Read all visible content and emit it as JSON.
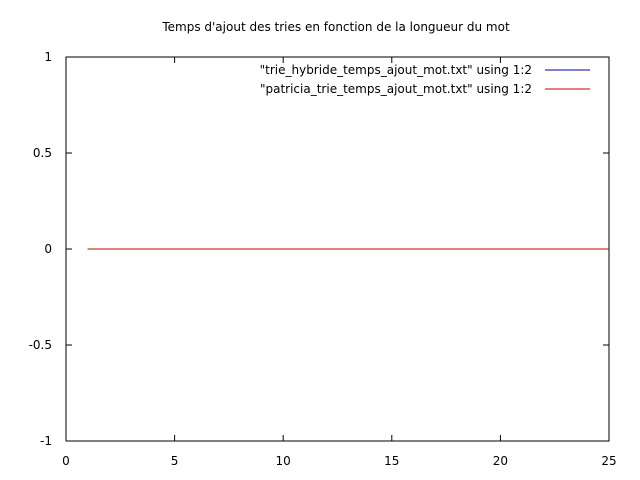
{
  "chart_data": {
    "type": "line",
    "title": "Temps d'ajout des tries en fonction de la longueur du mot",
    "xlabel": "",
    "ylabel": "",
    "xlim": [
      0,
      25
    ],
    "ylim": [
      -1,
      1
    ],
    "xticks": [
      0,
      5,
      10,
      15,
      20,
      25
    ],
    "yticks": [
      -1,
      -0.5,
      0,
      0.5,
      1
    ],
    "xtick_labels": [
      "0",
      "5",
      "10",
      "15",
      "20",
      "25"
    ],
    "ytick_labels": [
      "-1",
      "-0.5",
      "0",
      "0.5",
      "1"
    ],
    "grid": false,
    "legend_position": "top-right",
    "series": [
      {
        "name": "\"trie_hybride_temps_ajout_mot.txt\" using 1:2",
        "color": "#0000a0",
        "x": [
          1,
          2,
          3,
          4,
          5,
          6,
          7,
          8,
          9,
          10,
          11,
          12,
          13,
          14,
          15,
          16,
          17,
          18,
          19,
          20,
          21,
          22,
          23,
          24,
          25
        ],
        "y": [
          0,
          0,
          0,
          0,
          0,
          0,
          0,
          0,
          0,
          0,
          0,
          0,
          0,
          0,
          0,
          0,
          0,
          0,
          0,
          0,
          0,
          0,
          0,
          0,
          0
        ]
      },
      {
        "name": "\"patricia_trie_temps_ajout_mot.txt\" using 1:2",
        "color": "#c00000",
        "x": [
          1,
          2,
          3,
          4,
          5,
          6,
          7,
          8,
          9,
          10,
          11,
          12,
          13,
          14,
          15,
          16,
          17,
          18,
          19,
          20,
          21,
          22,
          23,
          24,
          25
        ],
        "y": [
          0,
          0,
          0,
          0,
          0,
          0,
          0,
          0,
          0,
          0,
          0,
          0,
          0,
          0,
          0,
          0,
          0,
          0,
          0,
          0,
          0,
          0,
          0,
          0,
          0
        ]
      }
    ]
  }
}
